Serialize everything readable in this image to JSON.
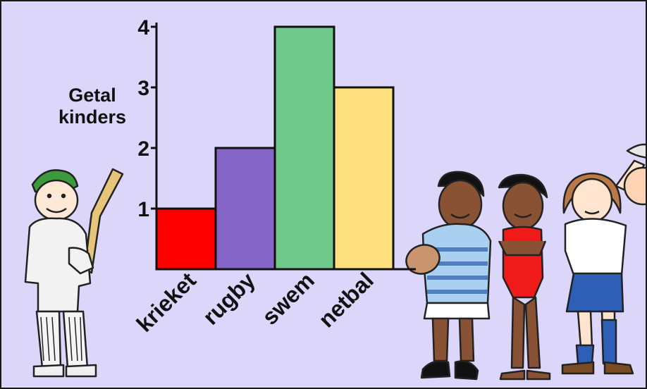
{
  "chart_data": {
    "type": "bar",
    "ylabel_lines": [
      "Getal",
      "kinders"
    ],
    "categories": [
      "krieket",
      "rugby",
      "swem",
      "netbal"
    ],
    "values": [
      1,
      2,
      4,
      3
    ],
    "yticks": [
      1,
      2,
      3,
      4
    ],
    "ylim": [
      0,
      4
    ],
    "grid": false,
    "bar_colors": [
      "#ff0000",
      "#8566c8",
      "#6fc98b",
      "#ffe07f"
    ]
  },
  "colors": {
    "background": "#dcd6fb",
    "axis": "#111111"
  },
  "illustrations": [
    "cricket-player-figure",
    "rugby-player-figure",
    "swimmer-figure",
    "netball-player-figure"
  ]
}
